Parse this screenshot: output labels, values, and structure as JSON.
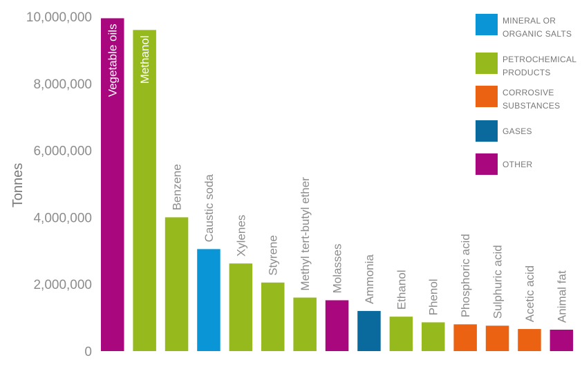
{
  "chart_data": {
    "type": "bar",
    "ylabel": "Tonnes",
    "ylim": [
      0,
      10000000
    ],
    "yticks": [
      "0",
      "2,000,000",
      "4,000,000",
      "6,000,000",
      "8,000,000",
      "10,000,000"
    ],
    "grid": false,
    "legend_position": "top-right",
    "categories": [
      "Vegetable oils",
      "Methanol",
      "Benzene",
      "Caustic soda",
      "Xylenes",
      "Styrene",
      "Methyl tert-butyl ether",
      "Molasses",
      "Ammonia",
      "Ethanol",
      "Phenol",
      "Phosphoric acid",
      "Sulphuric acid",
      "Acetic acid",
      "Animal fat"
    ],
    "values": [
      9950000,
      9600000,
      4000000,
      3050000,
      2620000,
      2050000,
      1600000,
      1520000,
      1200000,
      1030000,
      860000,
      800000,
      760000,
      660000,
      640000
    ],
    "groups": [
      "OTHER",
      "PETROCHEMICAL PRODUCTS",
      "PETROCHEMICAL PRODUCTS",
      "MINERAL OR ORGANIC SALTS",
      "PETROCHEMICAL PRODUCTS",
      "PETROCHEMICAL PRODUCTS",
      "PETROCHEMICAL PRODUCTS",
      "OTHER",
      "GASES",
      "PETROCHEMICAL PRODUCTS",
      "PETROCHEMICAL PRODUCTS",
      "CORROSIVE SUBSTANCES",
      "CORROSIVE SUBSTANCES",
      "CORROSIVE SUBSTANCES",
      "OTHER"
    ],
    "legend": [
      {
        "lines": [
          "MINERAL OR",
          "ORGANIC SALTS"
        ],
        "color": "#0a96d6"
      },
      {
        "lines": [
          "PETROCHEMICAL",
          "PRODUCTS"
        ],
        "color": "#96ba1e"
      },
      {
        "lines": [
          "CORROSIVE",
          "SUBSTANCES"
        ],
        "color": "#ea6212"
      },
      {
        "lines": [
          "GASES"
        ],
        "color": "#0a6a9e"
      },
      {
        "lines": [
          "OTHER"
        ],
        "color": "#a8077e"
      }
    ],
    "group_colors": {
      "MINERAL OR ORGANIC SALTS": "#0a96d6",
      "PETROCHEMICAL PRODUCTS": "#96ba1e",
      "CORROSIVE SUBSTANCES": "#ea6212",
      "GASES": "#0a6a9e",
      "OTHER": "#a8077e"
    },
    "inside_label_color": "#ffffff",
    "outside_label_color": "#8c8c8c"
  }
}
